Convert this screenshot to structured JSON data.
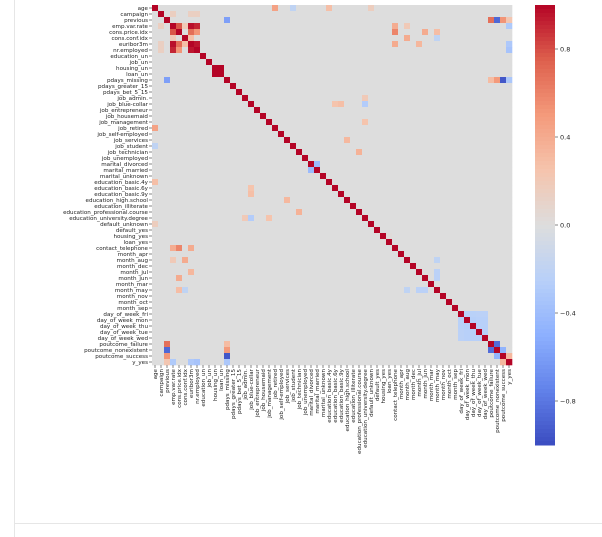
{
  "chart_data": {
    "type": "heatmap",
    "title": "",
    "xlabel": "",
    "ylabel": "",
    "variables": [
      "age",
      "campaign",
      "previous",
      "emp.var.rate",
      "cons.price.idx",
      "cons.conf.idx",
      "euribor3m",
      "nr.employed",
      "education_un",
      "job_un",
      "housing_un",
      "loan_un",
      "pdays_missing",
      "pdays_greater_15",
      "pdays_bet_5_15",
      "job_admin.",
      "job_blue-collar",
      "job_entrepreneur",
      "job_housemaid",
      "job_management",
      "job_retired",
      "job_self-employed",
      "job_services",
      "job_student",
      "job_technician",
      "job_unemployed",
      "marital_divorced",
      "marital_married",
      "marital_unknown",
      "education_basic.4y",
      "education_basic.6y",
      "education_basic.9y",
      "education_high.school",
      "education_illiterate",
      "education_professional.course",
      "education_university.degree",
      "default_unknown",
      "default_yes",
      "housing_yes",
      "loan_yes",
      "contact_telephone",
      "month_apr",
      "month_aug",
      "month_dec",
      "month_jul",
      "month_jun",
      "month_mar",
      "month_may",
      "month_nov",
      "month_oct",
      "month_sep",
      "day_of_week_fri",
      "day_of_week_mon",
      "day_of_week_thu",
      "day_of_week_tue",
      "day_of_week_wed",
      "poutcome_failure",
      "poutcome_nonexistent",
      "poutcome_success",
      "y_yes"
    ],
    "y_tick_labels": [
      "age",
      "campaign",
      "previous",
      "emp.var.rate",
      "cons.price.idx",
      "cons.conf.idx",
      "euribor3m",
      "nr.employed",
      "education_un",
      "job_un",
      "housing_un",
      "loan_un",
      "pdays_missing",
      "pdays_greater_15",
      "pdays_bet_5_15",
      "job_admin.",
      "job_blue-collar",
      "job_entrepreneur",
      "job_housemaid",
      "job_management",
      "job_retired",
      "job_self-employed",
      "job_services",
      "job_student",
      "job_technician",
      "job_unemployed",
      "marital_divorced",
      "marital_married",
      "marital_unknown",
      "education_basic.4y",
      "education_basic.6y",
      "education_basic.9y",
      "education_high.school",
      "education_illiterate",
      "education_professional.course",
      "education_university.degree",
      "default_unknown",
      "default_yes",
      "housing_yes",
      "loan_yes",
      "contact_telephone",
      "month_apr",
      "month_aug",
      "month_dec",
      "month_jul",
      "month_jun",
      "month_mar",
      "month_may",
      "month_nov",
      "month_oct",
      "month_sep",
      "day_of_week_fri",
      "day_of_week_mon",
      "day_of_week_thu",
      "day_of_week_tue",
      "day_of_week_wed",
      "poutcome_failure",
      "poutcome_nonexistent",
      "poutcome_success",
      "y_yes"
    ],
    "x_tick_labels": [
      "age",
      "campaign",
      "previous",
      "emp.var.rate",
      "cons.price.idx",
      "cons.conf.idx",
      "euribor3m",
      "nr.employed",
      "education_un",
      "job_un",
      "housing_un",
      "loan_un",
      "pdays_missing",
      "pdays_greater_15",
      "pdays_bet_5_15",
      "job_admin.",
      "job_blue-collar",
      "job_entrepreneur",
      "job_housemaid",
      "job_management",
      "job_retired",
      "job_self-employed",
      "job_services",
      "job_student",
      "job_technician",
      "job_unemployed",
      "marital_divorced",
      "marital_married",
      "marital_unknown",
      "education_basic.4y",
      "education_basic.6y",
      "education_basic.9y",
      "education_high.school",
      "education_illiterate",
      "education_professional.course",
      "education_university.degree",
      "default_unknown",
      "default_yes",
      "housing_yes",
      "loan_yes",
      "contact_telephone",
      "month_apr",
      "month_aug",
      "month_dec",
      "month_jul",
      "month_jun",
      "month_mar",
      "month_may",
      "month_nov",
      "month_oct",
      "month_sep",
      "day_of_week_fri",
      "day_of_week_mon",
      "day_of_week_thu",
      "day_of_week_tue",
      "day_of_week_wed",
      "poutcome_failure",
      "poutcome_nonexistent",
      "poutcome_success",
      "y_yes"
    ],
    "colormap": "coolwarm",
    "vmin": -1.0,
    "vmax": 1.0,
    "default_value": 0.0,
    "colorbar_ticks": [
      0.8,
      0.4,
      0.0,
      -0.4,
      -0.8
    ],
    "colorbar_tick_labels": [
      "0.8",
      "0.4",
      "0.0",
      "−0.4",
      "−0.8"
    ],
    "notable_pairs": [
      [
        "previous",
        "pdays_missing",
        -0.59
      ],
      [
        "previous",
        "poutcome_failure",
        0.68
      ],
      [
        "previous",
        "poutcome_nonexistent",
        -0.87
      ],
      [
        "previous",
        "poutcome_success",
        0.52
      ],
      [
        "emp.var.rate",
        "cons.price.idx",
        0.78
      ],
      [
        "emp.var.rate",
        "cons.conf.idx",
        0.2
      ],
      [
        "emp.var.rate",
        "euribor3m",
        0.97
      ],
      [
        "emp.var.rate",
        "nr.employed",
        0.91
      ],
      [
        "cons.price.idx",
        "euribor3m",
        0.69
      ],
      [
        "cons.price.idx",
        "nr.employed",
        0.52
      ],
      [
        "cons.conf.idx",
        "euribor3m",
        0.28
      ],
      [
        "euribor3m",
        "nr.employed",
        0.95
      ],
      [
        "education_un",
        "education_un",
        1.0
      ],
      [
        "job_un",
        "housing_un",
        0.0
      ],
      [
        "housing_un",
        "loan_un",
        1.0
      ],
      [
        "pdays_missing",
        "poutcome_success",
        -0.95
      ],
      [
        "pdays_missing",
        "y_yes",
        -0.32
      ],
      [
        "pdays_missing",
        "poutcome_nonexistent",
        0.5
      ],
      [
        "emp.var.rate",
        "y_yes",
        -0.3
      ],
      [
        "nr.employed",
        "y_yes",
        -0.35
      ],
      [
        "euribor3m",
        "y_yes",
        -0.31
      ],
      [
        "emp.var.rate",
        "contact_telephone",
        0.39
      ],
      [
        "cons.price.idx",
        "contact_telephone",
        0.59
      ],
      [
        "euribor3m",
        "contact_telephone",
        0.4
      ],
      [
        "cons.price.idx",
        "month_may",
        0.29
      ],
      [
        "cons.conf.idx",
        "month_may",
        -0.2
      ],
      [
        "emp.var.rate",
        "month_aug",
        0.2
      ],
      [
        "cons.price.idx",
        "month_jun",
        0.4
      ],
      [
        "cons.conf.idx",
        "month_aug",
        0.4
      ],
      [
        "euribor3m",
        "month_jul",
        0.33
      ],
      [
        "job_blue-collar",
        "education_basic.9y",
        0.28
      ],
      [
        "job_blue-collar",
        "education_basic.6y",
        0.25
      ],
      [
        "job_blue-collar",
        "education_university.degree",
        -0.28
      ],
      [
        "job_admin.",
        "education_university.degree",
        0.2
      ],
      [
        "job_retired",
        "age",
        0.45
      ],
      [
        "job_student",
        "age",
        -0.2
      ],
      [
        "job_management",
        "education_university.degree",
        0.25
      ],
      [
        "job_technician",
        "education_professional.course",
        0.36
      ],
      [
        "job_services",
        "education_high.school",
        0.32
      ],
      [
        "education_basic.4y",
        "age",
        0.28
      ],
      [
        "marital_divorced",
        "marital_married",
        -0.42
      ],
      [
        "default_unknown",
        "age",
        0.16
      ],
      [
        "housing_yes",
        "loan_yes",
        0.02
      ],
      [
        "month_may",
        "month_jun",
        -0.23
      ],
      [
        "month_may",
        "month_jul",
        -0.23
      ],
      [
        "month_may",
        "month_aug",
        -0.2
      ],
      [
        "day_of_week_fri",
        "day_of_week_mon",
        -0.24
      ],
      [
        "day_of_week_fri",
        "day_of_week_thu",
        -0.24
      ],
      [
        "day_of_week_fri",
        "day_of_week_tue",
        -0.23
      ],
      [
        "day_of_week_fri",
        "day_of_week_wed",
        -0.23
      ],
      [
        "day_of_week_mon",
        "day_of_week_thu",
        -0.26
      ],
      [
        "day_of_week_mon",
        "day_of_week_tue",
        -0.25
      ],
      [
        "day_of_week_mon",
        "day_of_week_wed",
        -0.25
      ],
      [
        "day_of_week_thu",
        "day_of_week_tue",
        -0.25
      ],
      [
        "day_of_week_thu",
        "day_of_week_wed",
        -0.25
      ],
      [
        "day_of_week_tue",
        "day_of_week_wed",
        -0.25
      ],
      [
        "poutcome_failure",
        "poutcome_nonexistent",
        -0.85
      ],
      [
        "poutcome_nonexistent",
        "poutcome_success",
        -0.47
      ],
      [
        "poutcome_success",
        "y_yes",
        0.32
      ],
      [
        "previous",
        "y_yes",
        0.23
      ],
      [
        "poutcome_failure",
        "pdays_missing",
        0.3
      ],
      [
        "campaign",
        "emp.var.rate",
        0.15
      ],
      [
        "campaign",
        "euribor3m",
        0.14
      ],
      [
        "campaign",
        "nr.employed",
        0.14
      ]
    ]
  }
}
